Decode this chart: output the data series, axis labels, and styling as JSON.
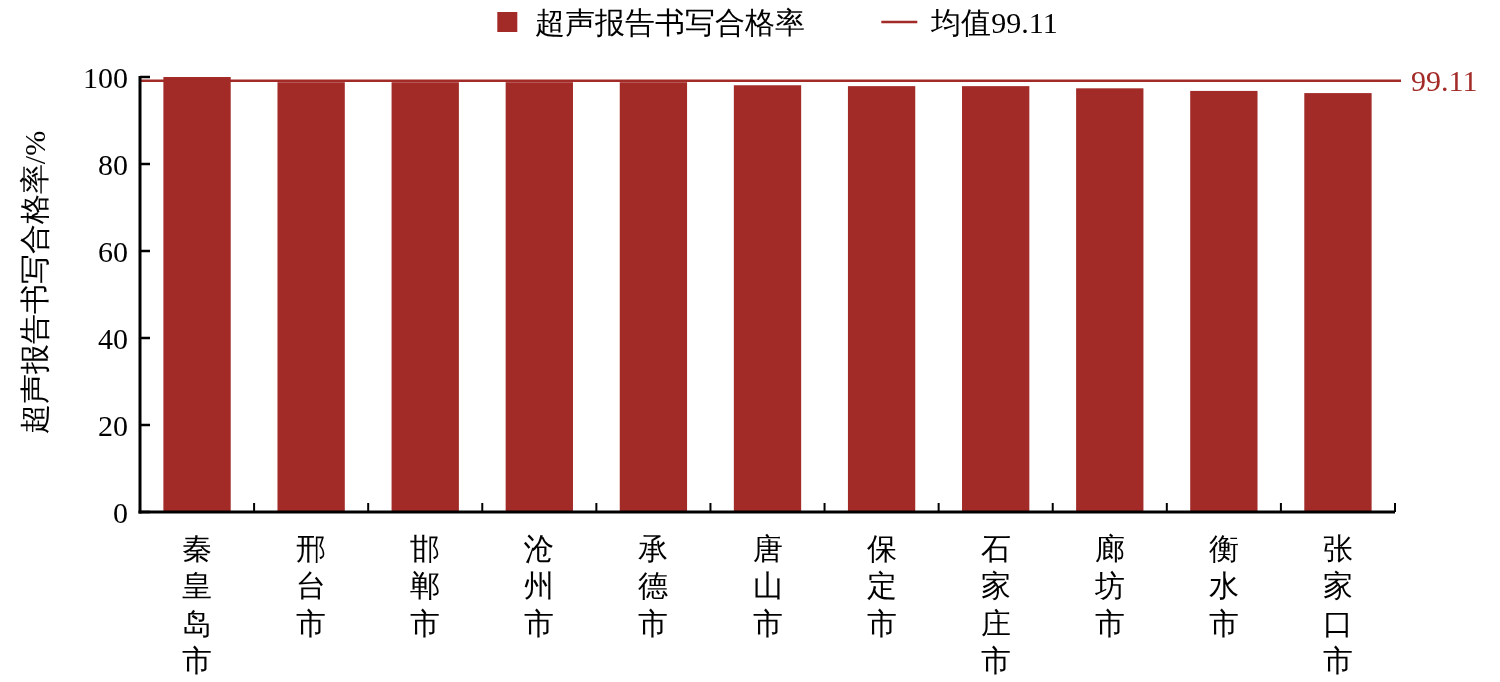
{
  "chart_data": {
    "type": "bar",
    "ylabel": "超声报告书写合格率/%",
    "categories": [
      "秦皇岛市",
      "邢台市",
      "邯郸市",
      "沧州市",
      "承德市",
      "唐山市",
      "保定市",
      "石家庄市",
      "廊坊市",
      "衡水市",
      "张家口市"
    ],
    "series": [
      {
        "name": "超声报告书写合格率",
        "color": "#a22a27",
        "values": [
          100,
          98.8,
          98.8,
          98.8,
          98.8,
          98.1,
          97.9,
          97.9,
          97.4,
          96.8,
          96.3
        ]
      }
    ],
    "ylim": [
      0,
      100
    ],
    "yticks": [
      0,
      20,
      40,
      60,
      80,
      100
    ],
    "ref_lines": [
      {
        "axis": "y",
        "value": 99.11,
        "label": "均值99.11",
        "color": "#a22a27",
        "line_style": "solid"
      }
    ],
    "annotations": [
      "99.11"
    ],
    "legend": "top"
  }
}
